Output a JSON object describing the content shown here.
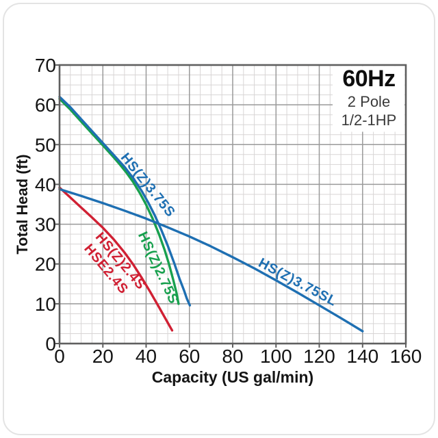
{
  "header": {
    "frequency": "60Hz",
    "poles": "2 Pole",
    "power": "1/2-1HP"
  },
  "colors": {
    "blue": "#1e6fb2",
    "green": "#18a04e",
    "red": "#d02033",
    "grid_major": "#999999",
    "grid_minor": "#d8d5d5",
    "axis": "#5f5f5f",
    "text": "#141414"
  },
  "chart_data": {
    "type": "line",
    "title": "",
    "xlabel": "Capacity (US gal/min)",
    "ylabel": "Total Head (ft)",
    "xlim": [
      0,
      160
    ],
    "ylim": [
      0,
      70
    ],
    "x_major_ticks": [
      0,
      20,
      40,
      60,
      80,
      100,
      120,
      140,
      160
    ],
    "y_major_ticks": [
      0,
      10,
      20,
      30,
      40,
      50,
      60,
      70
    ],
    "x_minor_step": 5,
    "y_minor_step": 2.5,
    "grid": "on",
    "legend_position": "labels-on-curves",
    "annotation": "60Hz / 2 Pole / 1/2-1HP",
    "series": [
      {
        "name": "HS(Z)2.75S",
        "color": "#18a04e",
        "points": [
          [
            0,
            61.5
          ],
          [
            5,
            58.8
          ],
          [
            10,
            55.8
          ],
          [
            15,
            52.8
          ],
          [
            20,
            49.8
          ],
          [
            25,
            46.8
          ],
          [
            28,
            44.9
          ],
          [
            31,
            42.9
          ],
          [
            34,
            40.6
          ],
          [
            37,
            37.9
          ],
          [
            40,
            34.9
          ],
          [
            43,
            31.4
          ],
          [
            46,
            27.4
          ],
          [
            48.5,
            23.6
          ],
          [
            50.5,
            20.1
          ],
          [
            52.5,
            16.1
          ],
          [
            54,
            12.8
          ],
          [
            55,
            10
          ]
        ],
        "labels": [
          {
            "text": "HS(Z)2.75S",
            "x": 45.5,
            "y": 19.0,
            "rotation": 65
          }
        ]
      },
      {
        "name": "HS(Z)3.75S",
        "color": "#1e6fb2",
        "points": [
          [
            0,
            62
          ],
          [
            5,
            59.4
          ],
          [
            10,
            56.4
          ],
          [
            15,
            53.4
          ],
          [
            20,
            50.4
          ],
          [
            25,
            47.4
          ],
          [
            30,
            44.4
          ],
          [
            34,
            41.6
          ],
          [
            38,
            38.3
          ],
          [
            41,
            35.4
          ],
          [
            44,
            32.2
          ],
          [
            47,
            28.6
          ],
          [
            50,
            24.6
          ],
          [
            53,
            20.2
          ],
          [
            55.5,
            16.2
          ],
          [
            57.5,
            13.4
          ],
          [
            58.8,
            11.3
          ],
          [
            60.2,
            9.6
          ]
        ],
        "labels": [
          {
            "text": "HS(Z)3.75S",
            "x": 40.8,
            "y": 39.8,
            "rotation": 51
          }
        ]
      },
      {
        "name": "HS(Z)2.4S / HSE2.4S",
        "color": "#d02033",
        "points": [
          [
            0,
            39.2
          ],
          [
            5,
            36.7
          ],
          [
            10,
            34.2
          ],
          [
            15,
            31.7
          ],
          [
            20,
            29.1
          ],
          [
            25,
            26.2
          ],
          [
            30,
            22.9
          ],
          [
            34,
            19.9
          ],
          [
            38,
            16.5
          ],
          [
            42,
            12.9
          ],
          [
            46,
            9.1
          ],
          [
            49,
            6.2
          ],
          [
            52,
            3.3
          ]
        ],
        "labels": [
          {
            "text": "HS(Z)2.4S",
            "x": 28.1,
            "y": 20.7,
            "rotation": 50
          },
          {
            "text": "HSE2.4S",
            "x": 21.5,
            "y": 18.7,
            "rotation": 50
          }
        ]
      },
      {
        "name": "HS(Z)3.75SL",
        "color": "#1e6fb2",
        "points": [
          [
            0,
            38.8
          ],
          [
            10,
            37.1
          ],
          [
            20,
            35.3
          ],
          [
            30,
            33.4
          ],
          [
            40,
            31.4
          ],
          [
            50,
            29.2
          ],
          [
            60,
            26.9
          ],
          [
            70,
            24.4
          ],
          [
            80,
            21.7
          ],
          [
            90,
            18.9
          ],
          [
            100,
            15.9
          ],
          [
            110,
            12.8
          ],
          [
            120,
            9.6
          ],
          [
            130,
            6.4
          ],
          [
            140,
            3.1
          ]
        ],
        "labels": [
          {
            "text": "HS(Z)3.75SL",
            "x": 110,
            "y": 15.4,
            "rotation": 28
          }
        ]
      }
    ]
  }
}
